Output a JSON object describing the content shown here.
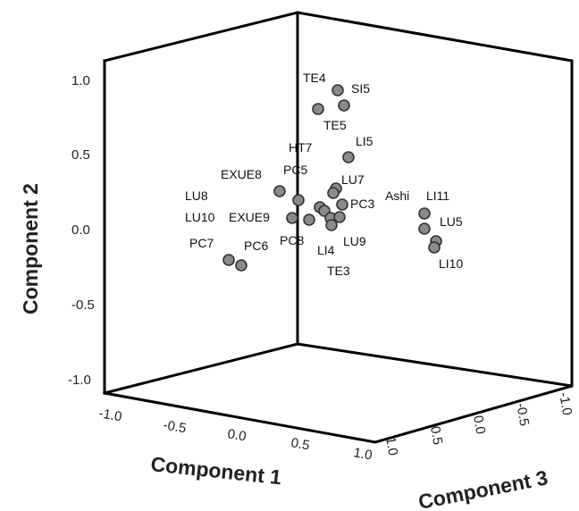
{
  "chart_data": {
    "type": "scatter",
    "projection": "3d",
    "grid": false,
    "axes": {
      "x": {
        "label": "Component 1",
        "range": [
          -1.0,
          1.0
        ],
        "ticks": [
          "-1.0",
          "-0.5",
          "0.0",
          "0.5",
          "1.0"
        ]
      },
      "y": {
        "label": "Component 2",
        "range": [
          -1.0,
          1.0
        ],
        "ticks": [
          "1.0",
          "0.5",
          "0.0",
          "-0.5",
          "-1.0"
        ]
      },
      "z": {
        "label": "Component 3",
        "range": [
          -1.0,
          1.0
        ],
        "ticks": [
          "1.0",
          "0.5",
          "0.0",
          "-0.5",
          "-1.0"
        ]
      }
    },
    "point_labels": [
      {
        "text": "TE4"
      },
      {
        "text": "SI5"
      },
      {
        "text": "TE5"
      },
      {
        "text": "LI5"
      },
      {
        "text": "HT7"
      },
      {
        "text": "PC5"
      },
      {
        "text": "EXUE8"
      },
      {
        "text": "LU7"
      },
      {
        "text": "LU8"
      },
      {
        "text": "PC3"
      },
      {
        "text": "Ashi"
      },
      {
        "text": "LI11"
      },
      {
        "text": "LU10"
      },
      {
        "text": "EXUE9"
      },
      {
        "text": "LU5"
      },
      {
        "text": "PC8"
      },
      {
        "text": "LU9"
      },
      {
        "text": "LI4"
      },
      {
        "text": "PC7"
      },
      {
        "text": "PC6"
      },
      {
        "text": "TE3"
      },
      {
        "text": "LI10"
      }
    ],
    "point_count": 26
  }
}
